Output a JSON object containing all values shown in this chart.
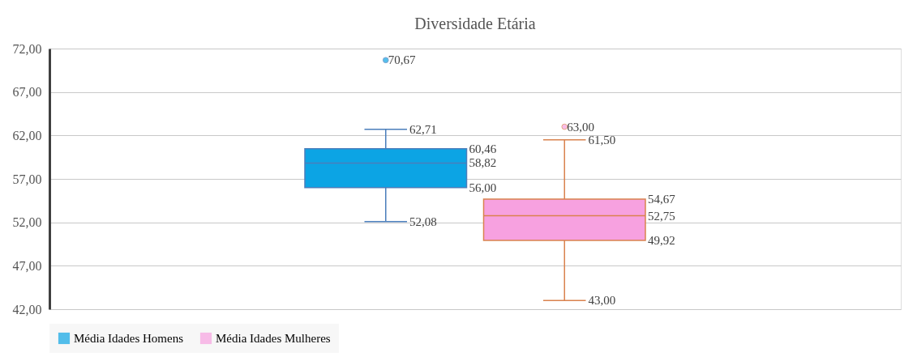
{
  "chart_data": {
    "type": "box",
    "title": "Diversidade Etária",
    "categories": [
      null
    ],
    "series": [
      {
        "name": "Média Idades Homens",
        "color": "#0ca4e4",
        "boxes": [
          {
            "low": 52.08,
            "q1": 56.0,
            "median": 58.82,
            "q3": 60.46,
            "high": 62.71,
            "outliers": [
              70.67
            ]
          }
        ],
        "value_labels": [
          [
            "62,71",
            "60,46",
            "58,82",
            "56,00",
            "52,08",
            "70,67"
          ]
        ]
      },
      {
        "name": "Média Idades Mulheres",
        "color": "#f7a1e0",
        "boxes": [
          {
            "low": 43.0,
            "q1": 49.92,
            "median": 52.75,
            "q3": 54.67,
            "high": 61.5,
            "outliers": [
              63.0
            ]
          }
        ],
        "value_labels": [
          [
            "61,50",
            "54,67",
            "52,75",
            "49,92",
            "43,00",
            "63,00"
          ]
        ]
      }
    ],
    "ylim": [
      42,
      72
    ],
    "yticks": [
      {
        "value": 42,
        "label": "42,00"
      },
      {
        "value": 47,
        "label": "47,00"
      },
      {
        "value": 52,
        "label": "52,00"
      },
      {
        "value": 57,
        "label": "57,00"
      },
      {
        "value": 62,
        "label": "62,00"
      },
      {
        "value": 67,
        "label": "67,00"
      },
      {
        "value": 72,
        "label": "72,00"
      }
    ],
    "grid": "y",
    "legend": "bottom"
  }
}
